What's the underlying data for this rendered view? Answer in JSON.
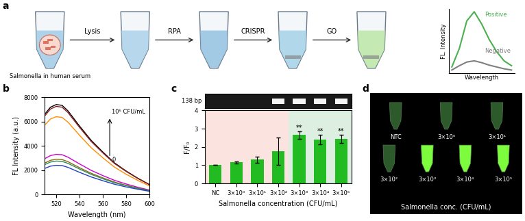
{
  "panel_labels": [
    "a",
    "b",
    "c",
    "d"
  ],
  "schematic": {
    "sample_label": "Salmonella in human serum",
    "steps": [
      "Lysis",
      "RPA",
      "CRISPR",
      "GO"
    ],
    "inset": {
      "xlabel": "Wavelength",
      "ylabel": "FL. Intensity",
      "tick_labels": false,
      "series": [
        {
          "name": "Positive",
          "color": "#4caf50",
          "values": [
            0.1,
            0.4,
            0.85,
            1.0,
            0.8,
            0.55,
            0.35,
            0.2,
            0.12
          ]
        },
        {
          "name": "Negative",
          "color": "#808080",
          "values": [
            0.05,
            0.12,
            0.18,
            0.2,
            0.17,
            0.13,
            0.1,
            0.07,
            0.05
          ]
        }
      ]
    }
  },
  "chart_data": [
    {
      "type": "line",
      "xlabel": "Wavelength (nm)",
      "ylabel": "FL Intensity (a.u.)",
      "x": [
        510,
        515,
        520,
        525,
        530,
        540,
        550,
        560,
        570,
        580,
        590,
        600
      ],
      "xlim": [
        510,
        600
      ],
      "xticks": [
        520,
        540,
        560,
        580,
        600
      ],
      "ylim": [
        0,
        8000
      ],
      "yticks": [
        0,
        2000,
        4000,
        6000,
        8000
      ],
      "annotations": [
        "10⁵ CFU/mL",
        "0"
      ],
      "series": [
        {
          "color": "#000000",
          "values": [
            6590,
            7180,
            7400,
            7330,
            6880,
            5620,
            4440,
            3480,
            2590,
            1920,
            1330,
            810
          ]
        },
        {
          "color": "#8b1a1a",
          "values": [
            6450,
            7030,
            7250,
            7180,
            6740,
            5510,
            4350,
            3410,
            2540,
            1890,
            1310,
            800
          ]
        },
        {
          "color": "#ff8c00",
          "values": [
            5700,
            6210,
            6400,
            6340,
            5950,
            4860,
            3840,
            3010,
            2240,
            1660,
            1150,
            700
          ]
        },
        {
          "color": "#cc00cc",
          "values": [
            2940,
            3200,
            3300,
            3270,
            3070,
            2510,
            1980,
            1550,
            1160,
            860,
            590,
            360
          ]
        },
        {
          "color": "#8b6914",
          "values": [
            2580,
            2810,
            2900,
            2870,
            2700,
            2200,
            1740,
            1360,
            1020,
            750,
            520,
            320
          ]
        },
        {
          "color": "#2e8b57",
          "values": [
            2450,
            2670,
            2750,
            2720,
            2560,
            2090,
            1650,
            1290,
            960,
            720,
            500,
            300
          ]
        },
        {
          "color": "#1f3fbf",
          "values": [
            2140,
            2330,
            2400,
            2380,
            2230,
            1820,
            1440,
            1130,
            840,
            620,
            430,
            260
          ]
        }
      ]
    },
    {
      "type": "bar",
      "xlabel": "Salmonella concentration (CFU/mL)",
      "ylabel": "F/F₀",
      "categories": [
        "NC",
        "3×10⁰",
        "3×10¹",
        "3×10²",
        "3×10³",
        "3×10⁴",
        "3×10⁵"
      ],
      "values": [
        1.0,
        1.15,
        1.3,
        1.75,
        2.65,
        2.4,
        2.45
      ],
      "errors": [
        0,
        0.05,
        0.18,
        0.75,
        0.2,
        0.25,
        0.22
      ],
      "significance": [
        null,
        null,
        null,
        null,
        "**",
        "**",
        "**"
      ],
      "color": "#22bb22",
      "ylim": [
        0,
        4
      ],
      "yticks": [
        0,
        1,
        2,
        3,
        4
      ],
      "gel": {
        "label": "138 bp",
        "bands": [
          false,
          false,
          false,
          true,
          true,
          true,
          true
        ]
      }
    }
  ],
  "photo": {
    "xlabel": "Salmonella conc. (CFU/mL)",
    "tubes": [
      {
        "label": "NTC",
        "positive": false
      },
      {
        "label": "3×10⁰",
        "positive": false
      },
      {
        "label": "3×10¹",
        "positive": false
      },
      {
        "label": "3×10²",
        "positive": false
      },
      {
        "label": "3×10³",
        "positive": true
      },
      {
        "label": "3×10⁴",
        "positive": true
      },
      {
        "label": "3×10⁵",
        "positive": true
      }
    ]
  }
}
